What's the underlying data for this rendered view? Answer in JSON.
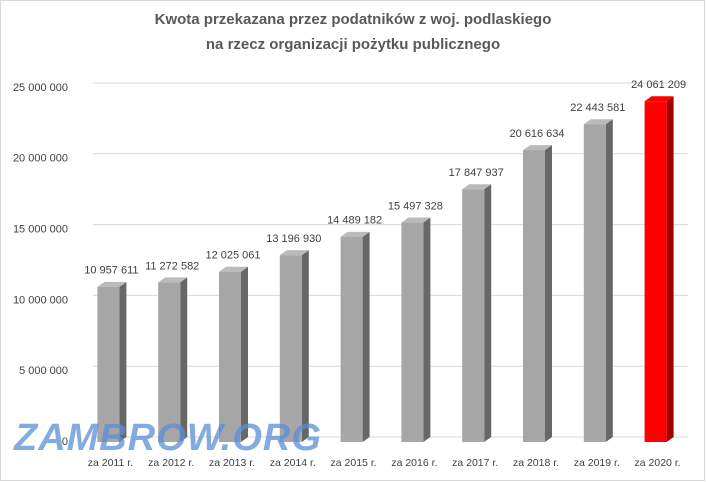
{
  "chart_data": {
    "type": "bar",
    "title": [
      "Kwota przekazana przez podatników z woj. podlaskiego",
      "na rzecz organizacji pożytku publicznego"
    ],
    "categories": [
      "za 2011 r.",
      "za 2012 r.",
      "za 2013 r.",
      "za 2014 r.",
      "za 2015 r.",
      "za 2016 r.",
      "za 2017 r.",
      "za 2018 r.",
      "za 2019 r.",
      "za 2020 r."
    ],
    "values": [
      10957611,
      11272582,
      12025061,
      13196930,
      14489182,
      15497328,
      17847937,
      20616634,
      22443581,
      24061209
    ],
    "value_labels": [
      "10 957 611",
      "11 272 582",
      "12 025 061",
      "13 196 930",
      "14 489 182",
      "15 497 328",
      "17 847 937",
      "20 616 634",
      "22 443 581",
      "24 061 209"
    ],
    "colors": [
      "#a6a6a6",
      "#a6a6a6",
      "#a6a6a6",
      "#a6a6a6",
      "#a6a6a6",
      "#a6a6a6",
      "#a6a6a6",
      "#a6a6a6",
      "#a6a6a6",
      "#ff0000"
    ],
    "ylim": [
      0,
      25000000
    ],
    "yticks": [
      0,
      {
        "value": 5000000,
        "label": "5 000 000"
      },
      {
        "value": 10000000,
        "label": "10 000 000"
      },
      {
        "value": 15000000,
        "label": "15 000 000"
      },
      {
        "value": 20000000,
        "label": "20 000 000"
      },
      {
        "value": 25000000,
        "label": "25 000 000"
      }
    ],
    "grid": true,
    "watermark": "ZAMBROW.ORG"
  }
}
